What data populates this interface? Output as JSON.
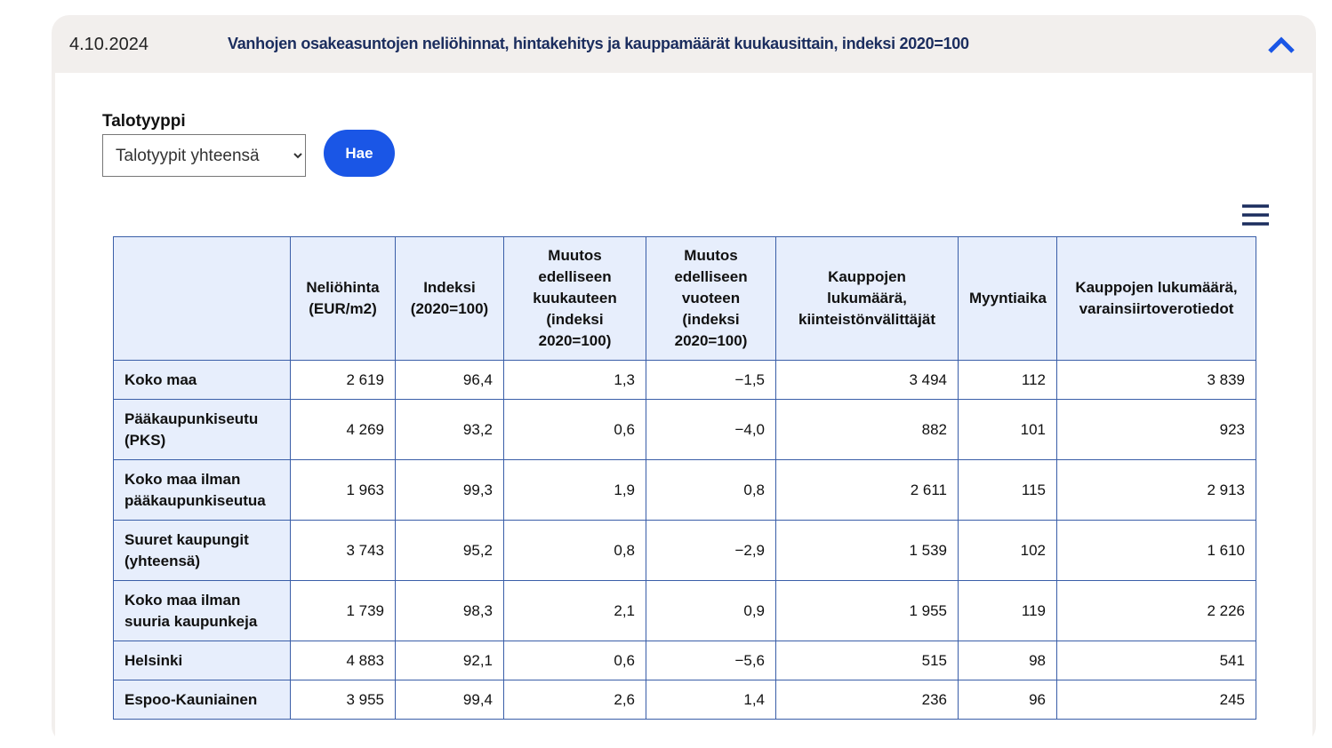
{
  "header": {
    "date": "4.10.2024",
    "title": "Vanhojen osakeasuntojen neliöhinnat, hintakehitys ja kauppamäärät kuukausittain, indeksi 2020=100"
  },
  "form": {
    "label": "Talotyyppi",
    "select_value": "Talotyypit yhteensä",
    "button": "Hae"
  },
  "table": {
    "columns": [
      "",
      "Neliöhinta (EUR/m2)",
      "Indeksi (2020=100)",
      "Muutos edelliseen kuukauteen (indeksi 2020=100)",
      "Muutos edelliseen vuoteen (indeksi 2020=100)",
      "Kauppojen lukumäärä, kiinteistönvälittäjät",
      "Myyntiaika",
      "Kauppojen lukumäärä, varainsiirtoverotiedot"
    ],
    "rows": [
      [
        "Koko maa",
        "2 619",
        "96,4",
        "1,3",
        "−1,5",
        "3 494",
        "112",
        "3 839"
      ],
      [
        "Pääkaupunkiseutu (PKS)",
        "4 269",
        "93,2",
        "0,6",
        "−4,0",
        "882",
        "101",
        "923"
      ],
      [
        "Koko maa ilman pääkaupunkiseutua",
        "1 963",
        "99,3",
        "1,9",
        "0,8",
        "2 611",
        "115",
        "2 913"
      ],
      [
        "Suuret kaupungit (yhteensä)",
        "3 743",
        "95,2",
        "0,8",
        "−2,9",
        "1 539",
        "102",
        "1 610"
      ],
      [
        "Koko maa ilman suuria kaupunkeja",
        "1 739",
        "98,3",
        "2,1",
        "0,9",
        "1 955",
        "119",
        "2 226"
      ],
      [
        "Helsinki",
        "4 883",
        "92,1",
        "0,6",
        "−5,6",
        "515",
        "98",
        "541"
      ],
      [
        "Espoo-Kauniainen",
        "3 955",
        "99,4",
        "2,6",
        "1,4",
        "236",
        "96",
        "245"
      ]
    ]
  }
}
